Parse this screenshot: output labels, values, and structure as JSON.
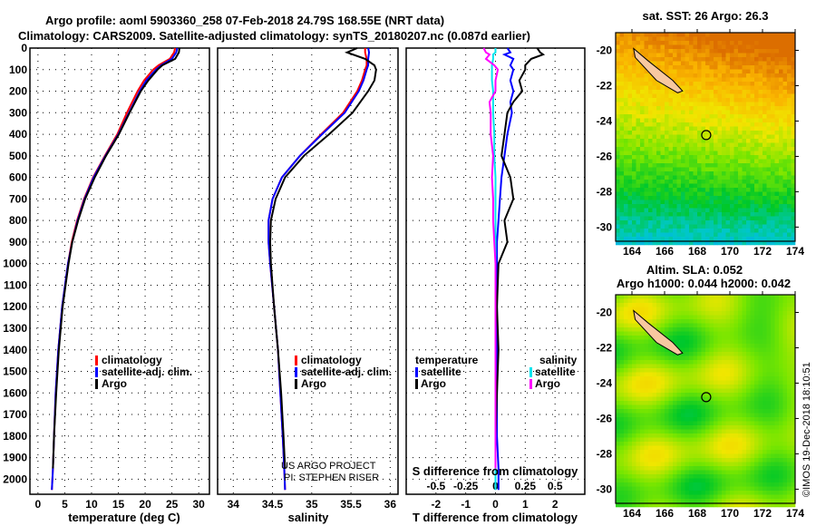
{
  "title_line1": "Argo profile: aoml 5903360_258 07-Feb-2018 24.79S 168.55E (NRT data)",
  "title_line2": "Climatology: CARS2009. Satellite-adjusted climatology: synTS_20180207.nc (0.087d earlier)",
  "credit": "US ARGO PROJECT",
  "pi": "PI: STEPHEN RISER",
  "stamp": "©IMOS 19-Dec-2018 18:10:51",
  "colors": {
    "climatology": "#ff0000",
    "satellite": "#0000ff",
    "argo": "#000000",
    "sal_satellite": "#00e5ee",
    "sal_argo": "#ff00ff"
  },
  "chart_data": [
    {
      "type": "line",
      "xlabel": "temperature (deg C)",
      "ylabel": "",
      "xlim": [
        -1.5,
        32
      ],
      "ylim": [
        2070,
        0
      ],
      "xticks": [
        0,
        5,
        10,
        15,
        20,
        25,
        30
      ],
      "yticks": [
        0,
        100,
        200,
        300,
        400,
        500,
        600,
        700,
        800,
        900,
        1000,
        1100,
        1200,
        1300,
        1400,
        1500,
        1600,
        1700,
        1800,
        1900,
        2000
      ],
      "legend": [
        "climatology",
        "satellite-adj. clim.",
        "Argo"
      ],
      "legend_position": "lower-right",
      "depth": [
        0,
        20,
        50,
        80,
        100,
        150,
        200,
        300,
        400,
        500,
        600,
        700,
        800,
        900,
        1000,
        1200,
        1400,
        1600,
        1800,
        1950,
        2050
      ],
      "series": [
        {
          "name": "climatology",
          "values": [
            25.6,
            25.4,
            24.6,
            22.5,
            21.5,
            19.8,
            18.6,
            16.6,
            14.8,
            12.5,
            10.3,
            8.6,
            7.3,
            6.3,
            5.6,
            4.5,
            3.8,
            3.3,
            3.0,
            2.8,
            2.6
          ]
        },
        {
          "name": "satellite-adj. clim.",
          "values": [
            26.0,
            25.8,
            25.0,
            23.0,
            22.0,
            20.2,
            19.0,
            17.0,
            15.0,
            12.6,
            10.4,
            8.7,
            7.4,
            6.4,
            5.6,
            4.5,
            3.8,
            3.3,
            3.0,
            2.8,
            2.6
          ]
        },
        {
          "name": "Argo",
          "values": [
            26.4,
            26.3,
            25.6,
            23.2,
            22.3,
            20.6,
            19.2,
            17.1,
            15.1,
            12.7,
            10.6,
            8.8,
            7.5,
            6.4,
            5.7,
            4.6,
            3.9,
            3.4,
            3.0,
            2.8,
            null
          ]
        }
      ]
    },
    {
      "type": "line",
      "xlabel": "salinity",
      "xlim": [
        33.8,
        36.1
      ],
      "ylim": [
        2070,
        0
      ],
      "xticks": [
        34,
        34.5,
        35,
        35.5,
        36
      ],
      "legend": [
        "climatology",
        "satellite-adj. clim.",
        "Argo"
      ],
      "legend_position": "lower-right",
      "depth": [
        0,
        20,
        50,
        80,
        100,
        150,
        200,
        300,
        400,
        500,
        600,
        700,
        800,
        900,
        1000,
        1200,
        1400,
        1600,
        1800,
        1950,
        2050
      ],
      "series": [
        {
          "name": "climatology",
          "values": [
            35.68,
            35.68,
            35.7,
            35.7,
            35.68,
            35.64,
            35.58,
            35.4,
            35.12,
            34.85,
            34.62,
            34.5,
            34.45,
            34.45,
            34.47,
            34.52,
            34.57,
            34.6,
            34.63,
            34.65,
            34.66
          ]
        },
        {
          "name": "satellite-adj. clim.",
          "values": [
            35.72,
            35.73,
            35.72,
            35.72,
            35.7,
            35.66,
            35.6,
            35.42,
            35.13,
            34.85,
            34.62,
            34.5,
            34.45,
            34.45,
            34.47,
            34.52,
            34.57,
            34.6,
            34.63,
            34.65,
            34.66
          ]
        },
        {
          "name": "Argo",
          "values": [
            35.58,
            35.45,
            35.68,
            35.8,
            35.82,
            35.8,
            35.72,
            35.52,
            35.22,
            34.9,
            34.66,
            34.54,
            34.48,
            34.47,
            34.48,
            34.52,
            34.57,
            34.61,
            34.64,
            34.66,
            null
          ]
        }
      ]
    },
    {
      "type": "line",
      "xlabel": "T difference from climatology",
      "x2label": "S difference from climatology",
      "xlim": [
        -3,
        3
      ],
      "x2lim": [
        -0.75,
        0.75
      ],
      "ylim": [
        2070,
        0
      ],
      "xticks": [
        -2,
        -1,
        0,
        1,
        2
      ],
      "x2ticks": [
        -0.5,
        -0.25,
        0,
        0.25,
        0.5
      ],
      "legend": [
        "temperature",
        "satellite",
        "Argo",
        "salinity",
        "satellite",
        "Argo"
      ],
      "depth": [
        0,
        20,
        30,
        50,
        80,
        100,
        150,
        200,
        250,
        300,
        400,
        500,
        600,
        700,
        800,
        900,
        1000,
        1200,
        1400,
        1600,
        1800,
        1950,
        2050
      ],
      "series": [
        {
          "name": "temperature satellite",
          "values": [
            0.4,
            0.5,
            0.3,
            0.6,
            0.5,
            0.6,
            0.5,
            0.6,
            0.5,
            0.55,
            0.4,
            0.3,
            0.2,
            0.15,
            0.1,
            0.05,
            0.05,
            0.05,
            0.05,
            0.05,
            0.05,
            0.1,
            0.1
          ]
        },
        {
          "name": "temperature Argo",
          "values": [
            1.4,
            1.5,
            1.6,
            1.2,
            1.0,
            1.0,
            0.8,
            0.9,
            0.6,
            0.4,
            0.3,
            0.2,
            0.5,
            0.6,
            0.3,
            0.4,
            0.1,
            0.05,
            0.1,
            0.05,
            0.0,
            0.0,
            null
          ]
        },
        {
          "name": "salinity satellite",
          "values": [
            0.0,
            0.0,
            -0.02,
            -0.02,
            -0.03,
            -0.03,
            -0.03,
            -0.02,
            -0.02,
            -0.02,
            -0.01,
            -0.01,
            0.0,
            0.0,
            0.0,
            0.0,
            0.0,
            0.0,
            0.0,
            0.0,
            0.0,
            0.0,
            0.0
          ]
        },
        {
          "name": "salinity Argo",
          "values": [
            -0.1,
            -0.08,
            -0.05,
            -0.08,
            -0.01,
            0.02,
            0.0,
            0.0,
            -0.05,
            -0.04,
            -0.04,
            -0.02,
            -0.03,
            -0.02,
            -0.02,
            -0.01,
            0.0,
            0.0,
            0.0,
            0.0,
            0.0,
            0.0,
            null
          ]
        }
      ]
    },
    {
      "type": "heatmap",
      "title": "sat. SST: 26 Argo: 26.3",
      "xlim": [
        163,
        174
      ],
      "ylim": [
        -30.8,
        -19
      ],
      "xticks": [
        164,
        166,
        168,
        170,
        172,
        174
      ],
      "yticks": [
        -20,
        -22,
        -24,
        -26,
        -28,
        -30
      ],
      "marker": {
        "lon": 168.55,
        "lat": -24.79
      }
    },
    {
      "type": "heatmap",
      "title": "Altim. SLA: 0.052",
      "subtitle": "Argo h1000: 0.044 h2000: 0.042",
      "xlim": [
        163,
        174
      ],
      "ylim": [
        -30.8,
        -19
      ],
      "xticks": [
        164,
        166,
        168,
        170,
        172,
        174
      ],
      "yticks": [
        -20,
        -22,
        -24,
        -26,
        -28,
        -30
      ],
      "marker": {
        "lon": 168.55,
        "lat": -24.79
      }
    }
  ]
}
